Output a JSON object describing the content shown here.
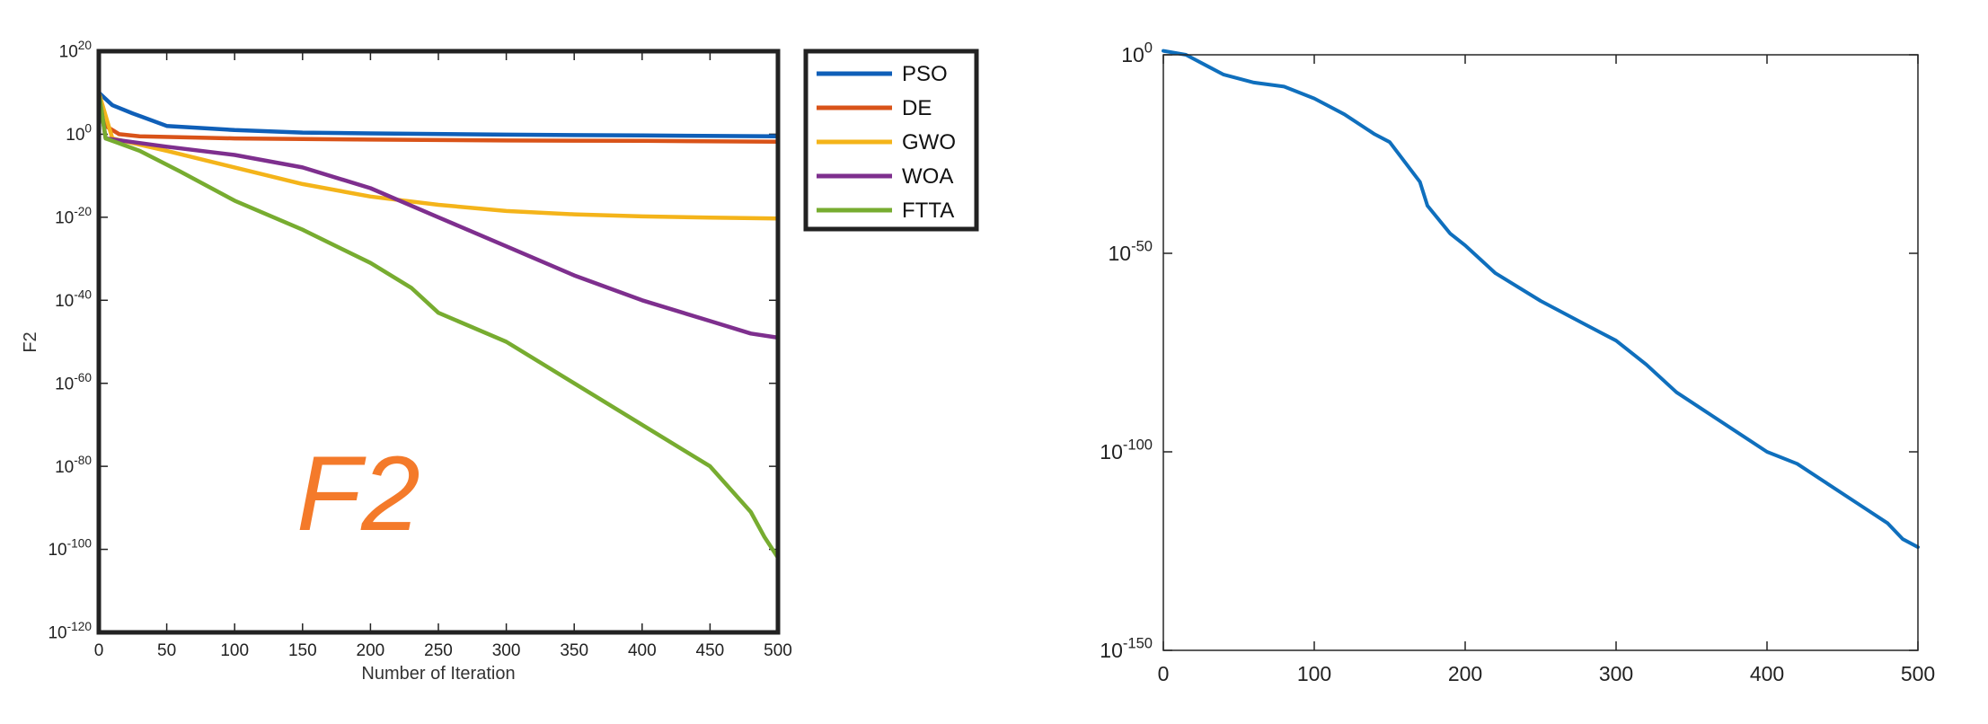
{
  "chart_data": [
    {
      "type": "line",
      "title": "",
      "xlabel": "Number of Iteration",
      "ylabel": "F2",
      "annotation": "F2",
      "yscale": "log",
      "xlim": [
        0,
        500
      ],
      "ylim_exp": [
        -120,
        20
      ],
      "xticks": [
        "0",
        "50",
        "100",
        "150",
        "200",
        "250",
        "300",
        "350",
        "400",
        "450",
        "500"
      ],
      "yticks": [
        {
          "base": "10",
          "exp": "20"
        },
        {
          "base": "10",
          "exp": "0"
        },
        {
          "base": "10",
          "exp": "-20"
        },
        {
          "base": "10",
          "exp": "-40"
        },
        {
          "base": "10",
          "exp": "-60"
        },
        {
          "base": "10",
          "exp": "-80"
        },
        {
          "base": "10",
          "exp": "-100"
        },
        {
          "base": "10",
          "exp": "-120"
        }
      ],
      "legend_position": "outside-right",
      "series": [
        {
          "name": "PSO",
          "color": "#0f5fb8",
          "points": [
            [
              0,
              10
            ],
            [
              10,
              7
            ],
            [
              25,
              5
            ],
            [
              50,
              2
            ],
            [
              100,
              1
            ],
            [
              150,
              0.4
            ],
            [
              200,
              0.2
            ],
            [
              300,
              -0.1
            ],
            [
              400,
              -0.3
            ],
            [
              500,
              -0.5
            ]
          ]
        },
        {
          "name": "DE",
          "color": "#d95319",
          "points": [
            [
              0,
              10
            ],
            [
              5,
              2
            ],
            [
              15,
              0
            ],
            [
              30,
              -0.5
            ],
            [
              100,
              -1
            ],
            [
              200,
              -1.3
            ],
            [
              300,
              -1.5
            ],
            [
              400,
              -1.6
            ],
            [
              500,
              -1.8
            ]
          ]
        },
        {
          "name": "GWO",
          "color": "#f4b41a",
          "points": [
            [
              0,
              10
            ],
            [
              10,
              -1
            ],
            [
              50,
              -4
            ],
            [
              100,
              -8
            ],
            [
              150,
              -12
            ],
            [
              200,
              -15
            ],
            [
              250,
              -17
            ],
            [
              300,
              -18.5
            ],
            [
              350,
              -19.3
            ],
            [
              400,
              -19.8
            ],
            [
              450,
              -20.1
            ],
            [
              500,
              -20.3
            ]
          ]
        },
        {
          "name": "WOA",
          "color": "#7e2f8e",
          "points": [
            [
              0,
              10
            ],
            [
              5,
              -1
            ],
            [
              50,
              -3
            ],
            [
              100,
              -5
            ],
            [
              150,
              -8
            ],
            [
              200,
              -13
            ],
            [
              250,
              -20
            ],
            [
              300,
              -27
            ],
            [
              350,
              -34
            ],
            [
              400,
              -40
            ],
            [
              450,
              -45
            ],
            [
              480,
              -48
            ],
            [
              500,
              -49
            ]
          ]
        },
        {
          "name": "FTTA",
          "color": "#77ac30",
          "points": [
            [
              0,
              10
            ],
            [
              5,
              -1
            ],
            [
              30,
              -4
            ],
            [
              60,
              -9
            ],
            [
              100,
              -16
            ],
            [
              150,
              -23
            ],
            [
              200,
              -31
            ],
            [
              230,
              -37
            ],
            [
              250,
              -43
            ],
            [
              300,
              -50
            ],
            [
              350,
              -60
            ],
            [
              400,
              -70
            ],
            [
              450,
              -80
            ],
            [
              480,
              -91
            ],
            [
              490,
              -97
            ],
            [
              500,
              -102
            ]
          ]
        }
      ]
    },
    {
      "type": "line",
      "title": "",
      "xlabel": "",
      "ylabel": "",
      "yscale": "log",
      "xlim": [
        0,
        500
      ],
      "ylim_exp": [
        -150,
        0
      ],
      "xticks": [
        "0",
        "100",
        "200",
        "300",
        "400",
        "500"
      ],
      "yticks": [
        {
          "base": "10",
          "exp": "0"
        },
        {
          "base": "10",
          "exp": "-50"
        },
        {
          "base": "10",
          "exp": "-100"
        },
        {
          "base": "10",
          "exp": "-150"
        }
      ],
      "series": [
        {
          "color": "#0f6fbd",
          "points": [
            [
              0,
              1
            ],
            [
              15,
              0
            ],
            [
              30,
              -3
            ],
            [
              40,
              -5
            ],
            [
              60,
              -7
            ],
            [
              80,
              -8
            ],
            [
              100,
              -11
            ],
            [
              120,
              -15
            ],
            [
              140,
              -20
            ],
            [
              150,
              -22
            ],
            [
              160,
              -27
            ],
            [
              170,
              -32
            ],
            [
              175,
              -38
            ],
            [
              190,
              -45
            ],
            [
              200,
              -48
            ],
            [
              220,
              -55
            ],
            [
              250,
              -62
            ],
            [
              280,
              -68
            ],
            [
              300,
              -72
            ],
            [
              320,
              -78
            ],
            [
              340,
              -85
            ],
            [
              360,
              -90
            ],
            [
              380,
              -95
            ],
            [
              400,
              -100
            ],
            [
              420,
              -103
            ],
            [
              440,
              -108
            ],
            [
              460,
              -113
            ],
            [
              480,
              -118
            ],
            [
              490,
              -122
            ],
            [
              500,
              -124
            ]
          ]
        }
      ]
    }
  ]
}
